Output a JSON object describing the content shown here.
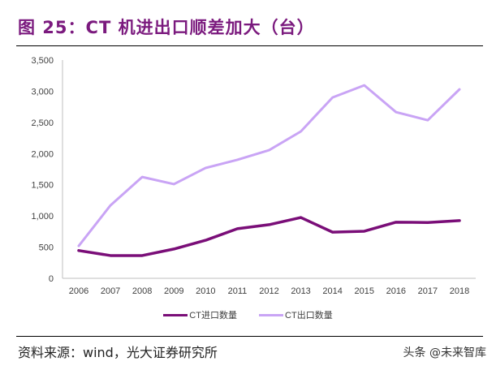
{
  "title": "图 25：CT 机进出口顺差加大（台）",
  "source": "资料来源：wind，光大证券研究所",
  "watermark": "头条 @未来智库",
  "chart_data": {
    "type": "line",
    "categories": [
      "2006",
      "2007",
      "2008",
      "2009",
      "2010",
      "2011",
      "2012",
      "2013",
      "2014",
      "2015",
      "2016",
      "2017",
      "2018"
    ],
    "ylim": [
      0,
      3500
    ],
    "yticks": [
      0,
      500,
      1000,
      1500,
      2000,
      2500,
      3000,
      3500
    ],
    "ytick_labels": [
      "0",
      "500",
      "1,000",
      "1,500",
      "2,000",
      "2,500",
      "3,000",
      "3,500"
    ],
    "legend_position": "bottom",
    "grid": false,
    "series": [
      {
        "name": "CT进口数量",
        "color": "#7a0e78",
        "values": [
          445,
          365,
          365,
          470,
          610,
          795,
          860,
          975,
          740,
          755,
          900,
          895,
          925
        ]
      },
      {
        "name": "CT出口数量",
        "color": "#c9a4f5",
        "values": [
          520,
          1170,
          1625,
          1510,
          1770,
          1900,
          2055,
          2355,
          2900,
          3095,
          2665,
          2535,
          3030
        ]
      }
    ]
  }
}
